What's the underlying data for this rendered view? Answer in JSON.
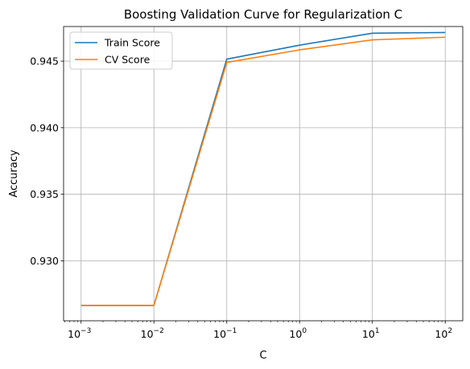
{
  "chart_data": {
    "type": "line",
    "title": "Boosting Validation Curve for Regularization C",
    "xlabel": "C",
    "ylabel": "Accuracy",
    "xscale": "log",
    "x": [
      0.001,
      0.01,
      0.1,
      1,
      10,
      100
    ],
    "x_tick_labels": [
      {
        "base": "10",
        "exp": "−3",
        "value": 0.001
      },
      {
        "base": "10",
        "exp": "−2",
        "value": 0.01
      },
      {
        "base": "10",
        "exp": "−1",
        "value": 0.1
      },
      {
        "base": "10",
        "exp": "0",
        "value": 1
      },
      {
        "base": "10",
        "exp": "1",
        "value": 10
      },
      {
        "base": "10",
        "exp": "2",
        "value": 100
      }
    ],
    "y_ticks": [
      0.93,
      0.935,
      0.94,
      0.945
    ],
    "y_tick_labels": [
      "0.930",
      "0.935",
      "0.940",
      "0.945"
    ],
    "xlim": [
      0.000575,
      174
    ],
    "ylim": [
      0.9255,
      0.9476
    ],
    "grid": true,
    "legend_position": "upper-left",
    "series": [
      {
        "name": "Train Score",
        "color": "#1f77b4",
        "values": [
          0.92665,
          0.92665,
          0.94515,
          0.9462,
          0.9471,
          0.94715
        ]
      },
      {
        "name": "CV Score",
        "color": "#ff7f0e",
        "values": [
          0.92665,
          0.92665,
          0.9449,
          0.94585,
          0.9466,
          0.9468
        ]
      }
    ]
  }
}
